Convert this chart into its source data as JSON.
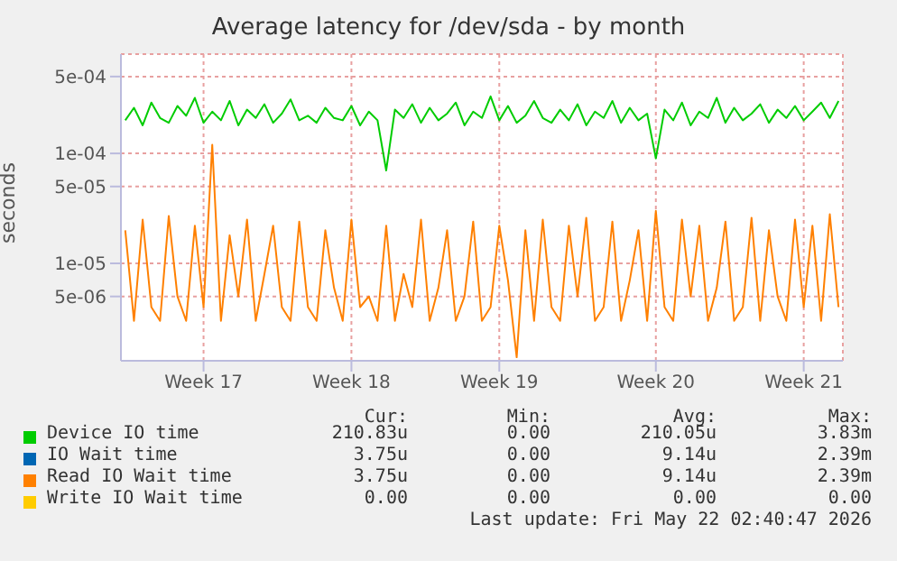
{
  "chart_data": {
    "type": "line",
    "title": "Average latency for /dev/sda - by month",
    "ylabel": "seconds",
    "categories": [
      null,
      null,
      null,
      null,
      null,
      null,
      null,
      null,
      null,
      "Week 17",
      null,
      null,
      null,
      null,
      null,
      null,
      null,
      null,
      null,
      null,
      null,
      null,
      null,
      null,
      null,
      null,
      "Week 18",
      null,
      null,
      null,
      null,
      null,
      null,
      null,
      null,
      null,
      null,
      null,
      null,
      null,
      null,
      null,
      null,
      "Week 19",
      null,
      null,
      null,
      null,
      null,
      null,
      null,
      null,
      null,
      null,
      null,
      null,
      null,
      null,
      null,
      null,
      null,
      "Week 20",
      null,
      null,
      null,
      null,
      null,
      null,
      null,
      null,
      null,
      null,
      null,
      null,
      null,
      null,
      null,
      null,
      "Week 21",
      null,
      null,
      null,
      null
    ],
    "series": [
      {
        "name": "Device IO time",
        "color": "#00cc00",
        "values": [
          0.0002,
          0.00026,
          0.00018,
          0.00029,
          0.00021,
          0.00019,
          0.00027,
          0.00022,
          0.00032,
          0.00019,
          0.00024,
          0.0002,
          0.0003,
          0.00018,
          0.00025,
          0.00021,
          0.00028,
          0.00019,
          0.00023,
          0.00031,
          0.0002,
          0.00022,
          0.00019,
          0.00026,
          0.00021,
          0.0002,
          0.00027,
          0.00018,
          0.00024,
          0.0002,
          7e-05,
          0.00025,
          0.00021,
          0.00028,
          0.00019,
          0.00026,
          0.0002,
          0.00023,
          0.00029,
          0.00018,
          0.00024,
          0.00021,
          0.00033,
          0.0002,
          0.00027,
          0.00019,
          0.00022,
          0.0003,
          0.00021,
          0.00019,
          0.00025,
          0.0002,
          0.00028,
          0.00018,
          0.00024,
          0.00021,
          0.0003,
          0.00019,
          0.00026,
          0.0002,
          0.00023,
          9e-05,
          0.00025,
          0.0002,
          0.00029,
          0.00018,
          0.00024,
          0.00021,
          0.00032,
          0.00019,
          0.00026,
          0.0002,
          0.00023,
          0.00028,
          0.00019,
          0.00025,
          0.00021,
          0.00027,
          0.0002,
          0.00024,
          0.00029,
          0.00021,
          0.0003
        ]
      },
      {
        "name": "IO Wait time",
        "color": "#0066b3",
        "values": [
          null,
          null,
          null,
          null,
          null,
          null,
          null,
          null,
          null,
          null,
          null,
          null,
          null,
          null,
          null,
          null,
          null,
          null,
          null,
          null,
          null,
          null,
          null,
          null,
          null,
          null,
          null,
          null,
          null,
          null,
          null,
          null,
          null,
          null,
          null,
          null,
          null,
          null,
          null,
          null,
          null,
          null,
          null,
          null,
          null,
          null,
          null,
          null,
          null,
          null,
          null,
          null,
          null,
          null,
          null,
          null,
          null,
          null,
          null,
          null,
          null,
          null,
          null,
          null,
          null,
          null,
          null,
          null,
          null,
          null,
          null,
          null,
          null,
          null,
          null,
          null,
          null,
          null,
          null,
          null,
          null,
          null,
          null
        ]
      },
      {
        "name": "Read IO Wait time",
        "color": "#ff8000",
        "values": [
          2e-05,
          3e-06,
          2.5e-05,
          4e-06,
          3e-06,
          2.7e-05,
          5e-06,
          3e-06,
          2.2e-05,
          4e-06,
          0.00012,
          3e-06,
          1.8e-05,
          5e-06,
          2.5e-05,
          3e-06,
          8e-06,
          2.2e-05,
          4e-06,
          3e-06,
          2.4e-05,
          4e-06,
          3e-06,
          2e-05,
          6e-06,
          3e-06,
          2.5e-05,
          4e-06,
          5e-06,
          3e-06,
          2.2e-05,
          3e-06,
          8e-06,
          4e-06,
          2.5e-05,
          3e-06,
          6e-06,
          2e-05,
          3e-06,
          5e-06,
          2.4e-05,
          3e-06,
          4e-06,
          2.2e-05,
          7e-06,
          1.4e-06,
          2e-05,
          3e-06,
          2.5e-05,
          4e-06,
          3e-06,
          2.2e-05,
          5e-06,
          2.6e-05,
          3e-06,
          4e-06,
          2.4e-05,
          3e-06,
          7e-06,
          2e-05,
          3e-06,
          3e-05,
          4e-06,
          3e-06,
          2.5e-05,
          5e-06,
          2.2e-05,
          3e-06,
          6e-06,
          2.4e-05,
          3e-06,
          4e-06,
          2.6e-05,
          3e-06,
          2e-05,
          5e-06,
          3e-06,
          2.5e-05,
          4e-06,
          2.2e-05,
          3e-06,
          2.8e-05,
          4e-06
        ]
      },
      {
        "name": "Write IO Wait time",
        "color": "#ffcc00",
        "values": [
          null,
          null,
          null,
          null,
          null,
          null,
          null,
          null,
          null,
          null,
          null,
          null,
          null,
          null,
          null,
          null,
          null,
          null,
          null,
          null,
          null,
          null,
          null,
          null,
          null,
          null,
          null,
          null,
          null,
          null,
          null,
          null,
          null,
          null,
          null,
          null,
          null,
          null,
          null,
          null,
          null,
          null,
          null,
          null,
          null,
          null,
          null,
          null,
          null,
          null,
          null,
          null,
          null,
          null,
          null,
          null,
          null,
          null,
          null,
          null,
          null,
          null,
          null,
          null,
          null,
          null,
          null,
          null,
          null,
          null,
          null,
          null,
          null,
          null,
          null,
          null,
          null,
          null,
          null,
          null,
          null,
          null,
          null
        ]
      }
    ],
    "ylim": [
      1.3e-06,
      0.0008
    ],
    "yticks": [
      {
        "value": 5e-06,
        "label": "5e-06"
      },
      {
        "value": 1e-05,
        "label": "1e-05"
      },
      {
        "value": 5e-05,
        "label": "5e-05"
      },
      {
        "value": 0.0001,
        "label": "1e-04"
      },
      {
        "value": 0.0005,
        "label": "5e-04"
      }
    ],
    "log": "y",
    "grid": true,
    "legend": "bottom",
    "marker": "none",
    "line_style": "solid",
    "annotations": [
      "Cur:",
      "Min:",
      "Avg:",
      "Max:",
      "210.83u",
      "0.00",
      "210.05u",
      "3.83m",
      "3.75u",
      "0.00",
      "9.14u",
      "2.39m",
      "3.75u",
      "0.00",
      "9.14u",
      "2.39m",
      "0.00",
      "0.00",
      "0.00",
      "0.00",
      "Last update: Fri May 22 02:40:47 2026"
    ]
  }
}
